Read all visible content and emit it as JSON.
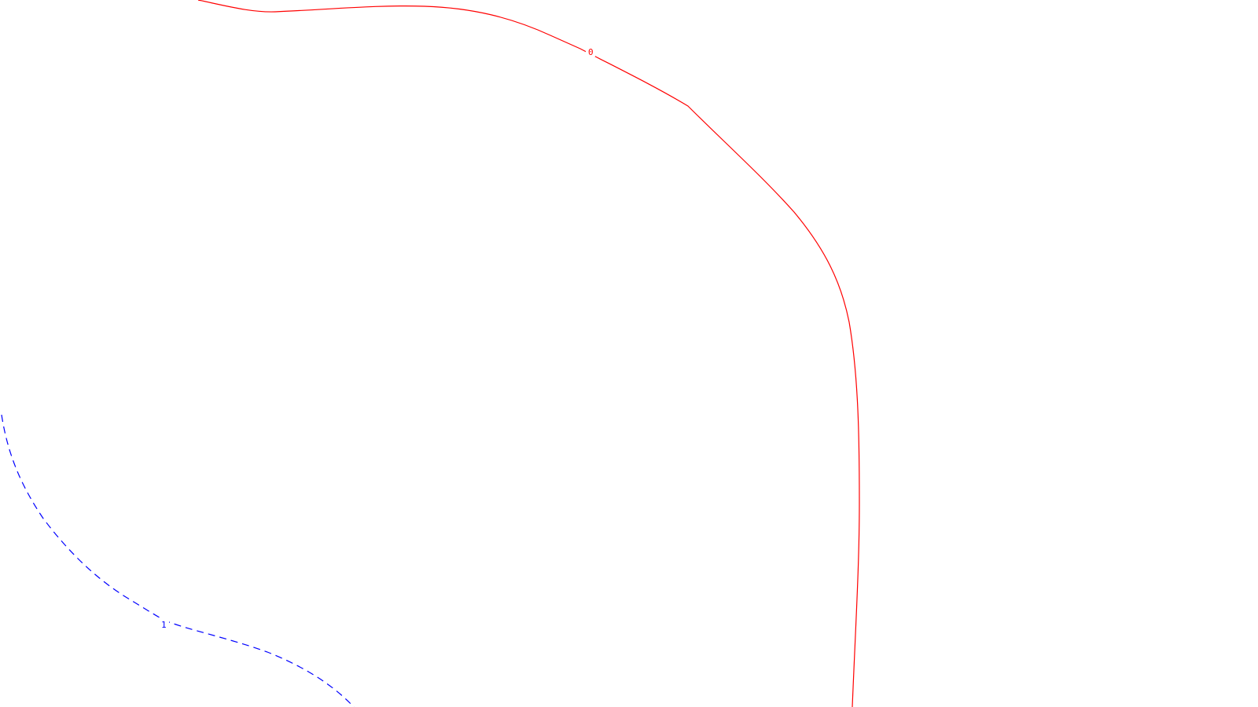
{
  "contours": [
    {
      "id": "contour-0",
      "level": "0",
      "color": "#ff0000",
      "style": "solid"
    },
    {
      "id": "contour-1",
      "level": "1",
      "color": "#0000ff",
      "style": "dashed"
    }
  ]
}
